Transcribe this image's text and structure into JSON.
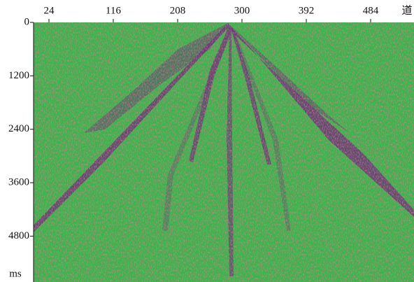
{
  "chart_data": {
    "type": "seismic",
    "x_label": "道",
    "y_label": "ms",
    "xlim": [
      2,
      546
    ],
    "xticks": [
      24,
      116,
      208,
      300,
      392,
      484
    ],
    "ylim": [
      0,
      5830
    ],
    "yticks": [
      0,
      1200,
      2400,
      3600,
      4800
    ],
    "background": "#38b44a",
    "color": "#6b2a78"
  }
}
